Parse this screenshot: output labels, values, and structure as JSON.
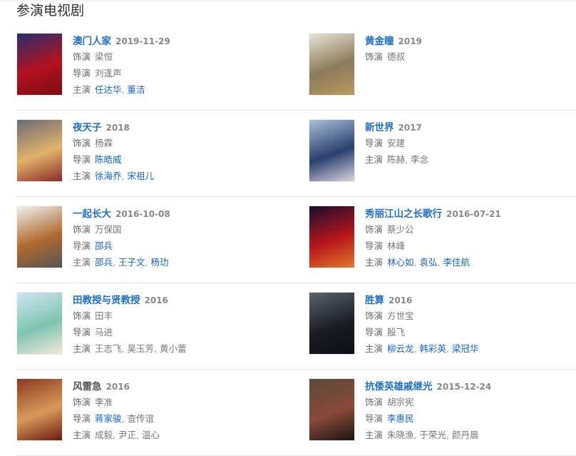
{
  "section_title": "参演电视剧",
  "labels": {
    "role": "饰演",
    "director": "导演",
    "cast": "主演"
  },
  "items": [
    {
      "title": "澳门人家",
      "title_link": true,
      "date": "2019-11-29",
      "poster_colors": [
        "#2a2f6e",
        "#b3121f",
        "#7a0d14"
      ],
      "role": [
        {
          "name": "梁恒",
          "link": false
        }
      ],
      "director": [
        {
          "name": "刘逢声",
          "link": false
        }
      ],
      "cast": [
        {
          "name": "任达华",
          "link": true
        },
        {
          "name": "董洁",
          "link": true
        }
      ]
    },
    {
      "title": "黄金瞳",
      "title_link": true,
      "date": "2019",
      "poster_colors": [
        "#e9e4d8",
        "#8c7a5a",
        "#b9985c"
      ],
      "role": [
        {
          "name": "德叔",
          "link": false
        }
      ],
      "director": [],
      "cast": []
    },
    {
      "title": "夜天子",
      "title_link": true,
      "date": "2018",
      "poster_colors": [
        "#6d6a78",
        "#e1b36a",
        "#8a2a2a"
      ],
      "role": [
        {
          "name": "杨霖",
          "link": false
        }
      ],
      "director": [
        {
          "name": "陈皓威",
          "link": true
        }
      ],
      "cast": [
        {
          "name": "徐海乔",
          "link": true
        },
        {
          "name": "宋祖儿",
          "link": true
        }
      ]
    },
    {
      "title": "新世界",
      "title_link": true,
      "date": "2017",
      "poster_colors": [
        "#a9c0da",
        "#2a3f6e",
        "#d8d6e0"
      ],
      "role": [],
      "director": [
        {
          "name": "安建",
          "link": false
        }
      ],
      "cast": [
        {
          "name": "陈赫",
          "link": false
        },
        {
          "name": "李念",
          "link": false
        }
      ]
    },
    {
      "title": "一起长大",
      "title_link": true,
      "date": "2016-10-08",
      "poster_colors": [
        "#f1f1f1",
        "#b06a2e",
        "#555555"
      ],
      "role": [
        {
          "name": "万保国",
          "link": false
        }
      ],
      "director": [
        {
          "name": "邵兵",
          "link": true
        }
      ],
      "cast": [
        {
          "name": "邵兵",
          "link": true
        },
        {
          "name": "王子文",
          "link": true
        },
        {
          "name": "杨玏",
          "link": true
        }
      ]
    },
    {
      "title": "秀丽江山之长歌行",
      "title_link": true,
      "date": "2016-07-21",
      "poster_colors": [
        "#1a0d2e",
        "#b8161c",
        "#e07a2a"
      ],
      "role": [
        {
          "name": "蔡少公",
          "link": false
        }
      ],
      "director": [
        {
          "name": "林峰",
          "link": false
        }
      ],
      "cast": [
        {
          "name": "林心如",
          "link": true
        },
        {
          "name": "袁弘",
          "link": true
        },
        {
          "name": "李佳航",
          "link": true
        }
      ]
    },
    {
      "title": "田教授与贤教授",
      "title_link": true,
      "date": "2016",
      "poster_colors": [
        "#cfe6f2",
        "#7fc4b0",
        "#f0e9d8"
      ],
      "role": [
        {
          "name": "田丰",
          "link": false
        }
      ],
      "director": [
        {
          "name": "马进",
          "link": false
        }
      ],
      "cast": [
        {
          "name": "王志飞",
          "link": false
        },
        {
          "name": "吴玉芳",
          "link": false
        },
        {
          "name": "黄小蕾",
          "link": false
        }
      ]
    },
    {
      "title": "胜算",
      "title_link": true,
      "date": "2016",
      "poster_colors": [
        "#5c6470",
        "#1a1d24",
        "#0c0e14"
      ],
      "role": [
        {
          "name": "方世宝",
          "link": false
        }
      ],
      "director": [
        {
          "name": "殷飞",
          "link": false
        }
      ],
      "cast": [
        {
          "name": "柳云龙",
          "link": true
        },
        {
          "name": "韩彩英",
          "link": true
        },
        {
          "name": "梁冠华",
          "link": true
        }
      ]
    },
    {
      "title": "风雷急",
      "title_link": false,
      "date": "2016",
      "poster_colors": [
        "#8c3a20",
        "#d89a5a",
        "#6e1a12"
      ],
      "role": [
        {
          "name": "李准",
          "link": false
        }
      ],
      "director": [
        {
          "name": "蒋家骏",
          "link": true
        },
        {
          "name": "查传谊",
          "link": false
        }
      ],
      "cast": [
        {
          "name": "成毅",
          "link": false
        },
        {
          "name": "尹正",
          "link": false
        },
        {
          "name": "温心",
          "link": false
        }
      ]
    },
    {
      "title": "抗倭英雄戚继光",
      "title_link": true,
      "date": "2015-12-24",
      "poster_colors": [
        "#5a4a3a",
        "#8a4a3a",
        "#1a1410"
      ],
      "role": [
        {
          "name": "胡宗宪",
          "link": false
        }
      ],
      "director": [
        {
          "name": "李惠民",
          "link": true
        }
      ],
      "cast": [
        {
          "name": "朱晓渔",
          "link": false
        },
        {
          "name": "于荣光",
          "link": false
        },
        {
          "name": "颜丹晨",
          "link": false
        }
      ]
    }
  ]
}
